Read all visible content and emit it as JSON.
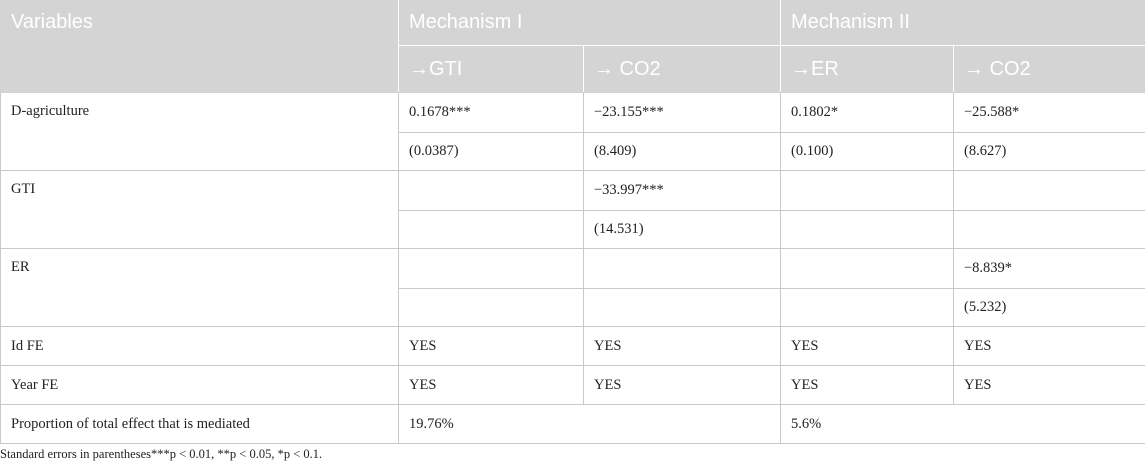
{
  "table": {
    "header": {
      "variables": "Variables",
      "mechanism1": "Mechanism I",
      "mechanism2": "Mechanism II",
      "sub": [
        "→GTI",
        "→ CO2",
        "→ER",
        "→ CO2"
      ]
    },
    "rows": {
      "dagri": {
        "label": "D-agriculture",
        "coef": [
          "0.1678***",
          "−23.155***",
          "0.1802*",
          "−25.588*"
        ],
        "se": [
          "(0.0387)",
          "(8.409)",
          "(0.100)",
          "(8.627)"
        ]
      },
      "gti": {
        "label": "GTI",
        "coef": [
          "",
          "−33.997***",
          "",
          ""
        ],
        "se": [
          "",
          "(14.531)",
          "",
          ""
        ]
      },
      "er": {
        "label": "ER",
        "coef": [
          "",
          "",
          "",
          "−8.839*"
        ],
        "se": [
          "",
          "",
          "",
          "(5.232)"
        ]
      },
      "idfe": {
        "label": "Id FE",
        "values": [
          "YES",
          "YES",
          "YES",
          "YES"
        ]
      },
      "yearfe": {
        "label": "Year FE",
        "values": [
          "YES",
          "YES",
          "YES",
          "YES"
        ]
      },
      "proportion": {
        "label": "Proportion of total effect that is mediated",
        "mech1": "19.76%",
        "mech2": "5.6%"
      }
    },
    "note": "Standard errors in parentheses***p < 0.01, **p < 0.05, *p < 0.1."
  }
}
